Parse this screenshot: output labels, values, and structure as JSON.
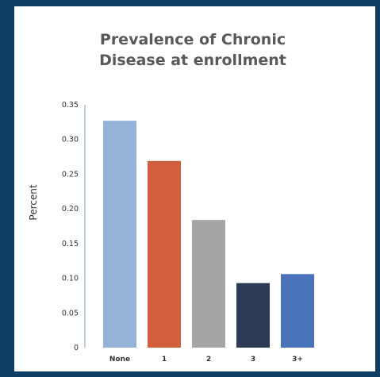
{
  "chart_data": {
    "type": "bar",
    "title_lines": [
      "Prevalence of Chronic",
      "Disease at enrollment"
    ],
    "ylabel": "Percent",
    "xlabel": "",
    "categories": [
      "None",
      "1",
      "2",
      "3",
      "3+"
    ],
    "values": [
      0.327,
      0.269,
      0.184,
      0.093,
      0.106
    ],
    "colors": [
      "#95b3d7",
      "#d25f3e",
      "#a5a5a5",
      "#2e3b55",
      "#4a72b8"
    ],
    "ylim": [
      0,
      0.35
    ],
    "yticks": [
      0,
      0.05,
      0.1,
      0.15,
      0.2,
      0.25,
      0.3,
      0.35
    ],
    "ytick_labels": [
      "0",
      "0.05",
      "0.10",
      "0.15",
      "0.20",
      "0.25",
      "0.30",
      "0.35"
    ],
    "grid": false,
    "legend": "none"
  }
}
